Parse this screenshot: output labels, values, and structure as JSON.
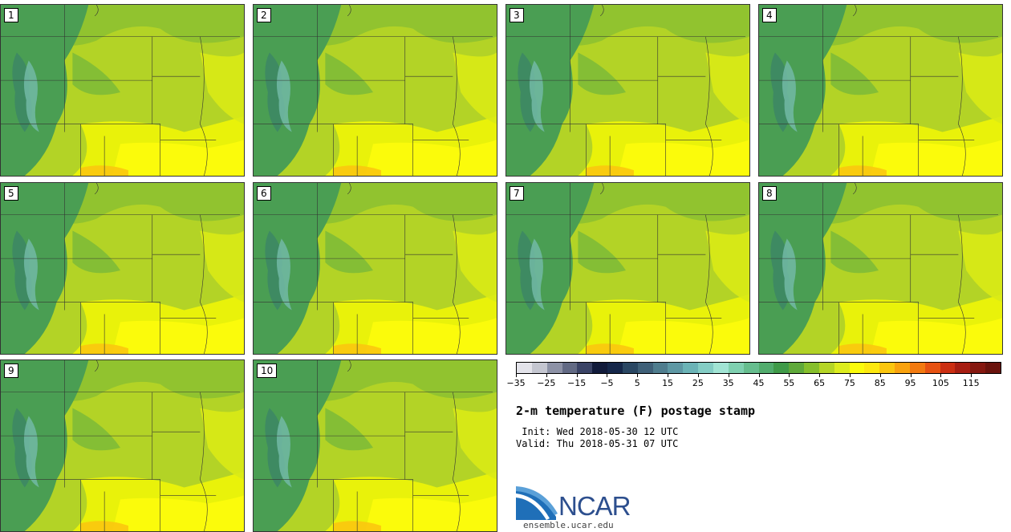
{
  "panels": [
    {
      "label": "1"
    },
    {
      "label": "2"
    },
    {
      "label": "3"
    },
    {
      "label": "4"
    },
    {
      "label": "5"
    },
    {
      "label": "6"
    },
    {
      "label": "7"
    },
    {
      "label": "8"
    },
    {
      "label": "9"
    },
    {
      "label": "10"
    }
  ],
  "colorbar": {
    "colors": [
      "#e3e3ea",
      "#c4c6d0",
      "#8d92a6",
      "#626a84",
      "#3a4366",
      "#111b3b",
      "#15274a",
      "#2a4763",
      "#3f6078",
      "#4f7d8e",
      "#5e98a4",
      "#6bb3b6",
      "#84cdc5",
      "#a1e4d4",
      "#7fd0b0",
      "#66bd8e",
      "#52ac6d",
      "#3f9a48",
      "#5fa93a",
      "#86bf2c",
      "#b5d526",
      "#dcec1e",
      "#fbfb0b",
      "#fde80f",
      "#fbc60e",
      "#f9a20e",
      "#f27a10",
      "#e65212",
      "#cb2f12",
      "#a71e12",
      "#851810",
      "#6a130d"
    ],
    "tick_labels": [
      "−35",
      "−25",
      "−15",
      "−5",
      "5",
      "15",
      "25",
      "35",
      "45",
      "55",
      "65",
      "75",
      "85",
      "95",
      "105",
      "115"
    ]
  },
  "title": "2-m temperature (F) postage stamp",
  "init": " Init: Wed 2018-05-30 12 UTC",
  "valid": "Valid: Thu 2018-05-31 07 UTC",
  "logo": {
    "text": "NCAR",
    "url": "ensemble.ucar.edu",
    "icon": "ncar-swoosh-icon"
  }
}
